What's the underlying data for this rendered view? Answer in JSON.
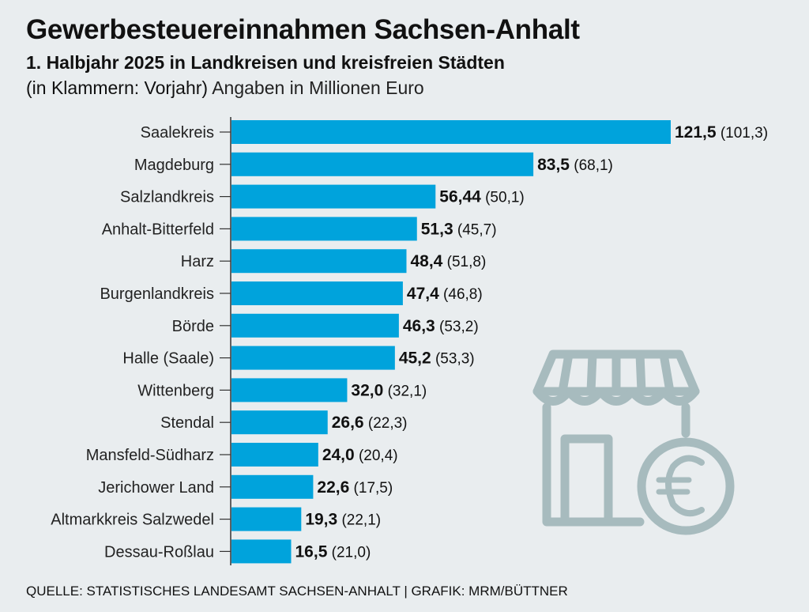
{
  "colors": {
    "bar": "#00a3dc",
    "background": "#e9edef",
    "icon": "#a7bbbe",
    "text": "#111111"
  },
  "icon": "storefront-euro-icon",
  "chart_data": {
    "type": "bar",
    "orientation": "horizontal",
    "title": "Gewerbesteuereinnahmen Sachsen-Anhalt",
    "subtitle": "1. Halbjahr 2025 in Landkreisen und kreisfreien Städten",
    "note_paren": "(in Klammern: Vorjahr)",
    "note_unit": "Angaben in Millionen Euro",
    "source": "QUELLE: STATISTISCHES LANDESAMT SACHSEN-ANHALT | GRAFIK: MRM/BÜTTNER",
    "xlim": [
      0,
      121.5
    ],
    "grid": false,
    "categories": [
      "Saalekreis",
      "Magdeburg",
      "Salzlandkreis",
      "Anhalt-Bitterfeld",
      "Harz",
      "Burgenlandkreis",
      "Börde",
      "Halle (Saale)",
      "Wittenberg",
      "Stendal",
      "Mansfeld-Südharz",
      "Jerichower Land",
      "Altmarkkreis Salzwedel",
      "Dessau-Roßlau"
    ],
    "values": [
      121.5,
      83.5,
      56.44,
      51.3,
      48.4,
      47.4,
      46.3,
      45.2,
      32.0,
      26.6,
      24.0,
      22.6,
      19.3,
      16.5
    ],
    "value_labels": [
      "121,5",
      "83,5",
      "56,44",
      "51,3",
      "48,4",
      "47,4",
      "46,3",
      "45,2",
      "32,0",
      "26,6",
      "24,0",
      "22,6",
      "19,3",
      "16,5"
    ],
    "previous_year": [
      101.3,
      68.1,
      50.1,
      45.7,
      51.8,
      46.8,
      53.2,
      53.3,
      32.1,
      22.3,
      20.4,
      17.5,
      22.1,
      21.0
    ],
    "previous_labels": [
      "(101,3)",
      "(68,1)",
      "(50,1)",
      "(45,7)",
      "(51,8)",
      "(46,8)",
      "(53,2)",
      "(53,3)",
      "(32,1)",
      "(22,3)",
      "(20,4)",
      "(17,5)",
      "(22,1)",
      "(21,0)"
    ]
  }
}
